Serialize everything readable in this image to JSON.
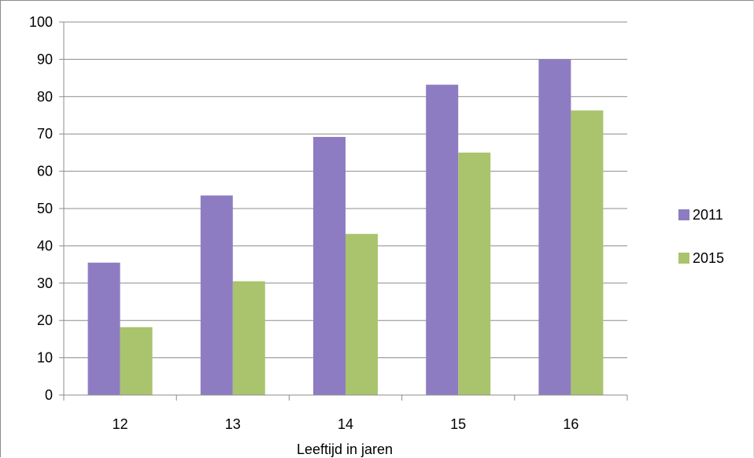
{
  "chart_data": {
    "type": "bar",
    "title": "",
    "xlabel": "Leeftijd in jaren",
    "ylabel": "",
    "categories": [
      "12",
      "13",
      "14",
      "15",
      "16"
    ],
    "series": [
      {
        "name": "2011",
        "color": "#8e7cc3",
        "values": [
          35.5,
          53.5,
          69.2,
          83.2,
          90.0
        ]
      },
      {
        "name": "2015",
        "color": "#a9c46d",
        "values": [
          18.2,
          30.5,
          43.2,
          65.0,
          76.3
        ]
      }
    ],
    "ylim": [
      0,
      100
    ],
    "yticks": [
      "0",
      "10",
      "20",
      "30",
      "40",
      "50",
      "60",
      "70",
      "80",
      "90",
      "100"
    ],
    "grid": true,
    "legend_position": "right"
  }
}
